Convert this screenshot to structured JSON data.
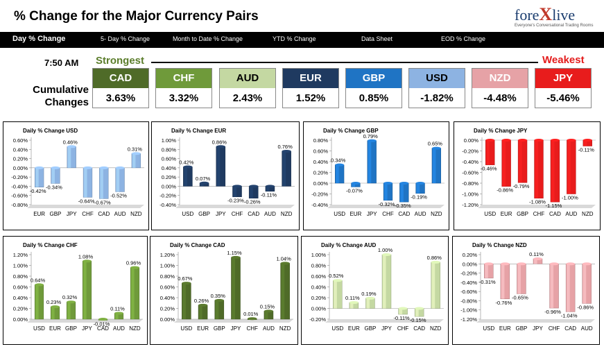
{
  "header": {
    "title": "% Change for the Major Currency Pairs",
    "logo_brand_left": "fore",
    "logo_brand_x": "X",
    "logo_brand_right": "live",
    "logo_tagline": "Everyone's Conversational Trading Rooms"
  },
  "nav": [
    {
      "label": "Day % Change",
      "active": true
    },
    {
      "label": "5- Day % Change",
      "active": false
    },
    {
      "label": "Month to Date % Change",
      "active": false
    },
    {
      "label": "YTD % Change",
      "active": false
    },
    {
      "label": "Data Sheet",
      "active": false
    },
    {
      "label": "EOD % Change",
      "active": false
    }
  ],
  "ranking": {
    "time": "7:50 AM",
    "strongest_label": "Strongest",
    "weakest_label": "Weakest",
    "cumulative_label_1": "Cumulative",
    "cumulative_label_2": "Changes",
    "currencies": [
      {
        "code": "CAD",
        "value": "3.63%",
        "color": "#4f6b28",
        "text": "#ffffff"
      },
      {
        "code": "CHF",
        "value": "3.32%",
        "color": "#6f9a3a",
        "text": "#ffffff"
      },
      {
        "code": "AUD",
        "value": "2.43%",
        "color": "#c4d8a2",
        "text": "#000000"
      },
      {
        "code": "EUR",
        "value": "1.52%",
        "color": "#1f3a60",
        "text": "#ffffff"
      },
      {
        "code": "GBP",
        "value": "0.85%",
        "color": "#1f74c4",
        "text": "#ffffff"
      },
      {
        "code": "USD",
        "value": "-1.82%",
        "color": "#8db3e2",
        "text": "#000000"
      },
      {
        "code": "NZD",
        "value": "-4.48%",
        "color": "#e6a2a6",
        "text": "#ffffff"
      },
      {
        "code": "JPY",
        "value": "-5.46%",
        "color": "#e81c1c",
        "text": "#ffffff"
      }
    ]
  },
  "chart_data": [
    {
      "type": "bar",
      "title": "Daily % Change USD",
      "categories": [
        "EUR",
        "GBP",
        "JPY",
        "CHF",
        "CAD",
        "AUD",
        "NZD"
      ],
      "values": [
        -0.42,
        -0.34,
        0.46,
        -0.64,
        -0.67,
        -0.52,
        0.31
      ],
      "labels": [
        "-0.42%",
        "-0.34%",
        "0.46%",
        "-0.64%",
        "-0.67%",
        "-0.52%",
        "0.31%"
      ],
      "ylim": [
        -0.8,
        0.6
      ],
      "yticks": [
        "0.60%",
        "0.40%",
        "0.20%",
        "0.00%",
        "-0.20%",
        "-0.40%",
        "-0.60%",
        "-0.80%"
      ],
      "color": "#8db3e2"
    },
    {
      "type": "bar",
      "title": "Daily % Change EUR",
      "categories": [
        "USD",
        "GBP",
        "JPY",
        "CHF",
        "CAD",
        "AUD",
        "NZD"
      ],
      "values": [
        0.42,
        0.07,
        0.86,
        -0.23,
        -0.26,
        -0.11,
        0.76
      ],
      "labels": [
        "0.42%",
        "0.07%",
        "0.86%",
        "-0.23%",
        "-0.26%",
        "-0.11%",
        "0.76%"
      ],
      "ylim": [
        -0.4,
        1.0
      ],
      "yticks": [
        "1.00%",
        "0.80%",
        "0.60%",
        "0.40%",
        "0.20%",
        "0.00%",
        "-0.20%",
        "-0.40%"
      ],
      "color": "#1f3a60"
    },
    {
      "type": "bar",
      "title": "Daily % Change GBP",
      "categories": [
        "USD",
        "EUR",
        "JPY",
        "CHF",
        "CAD",
        "AUD",
        "NZD"
      ],
      "values": [
        0.34,
        -0.07,
        0.79,
        -0.32,
        -0.35,
        -0.19,
        0.65
      ],
      "labels": [
        "0.34%",
        "-0.07%",
        "0.79%",
        "-0.32%",
        "-0.35%",
        "-0.19%",
        "0.65%"
      ],
      "ylim": [
        -0.4,
        0.8
      ],
      "yticks": [
        "0.80%",
        "0.60%",
        "0.40%",
        "0.20%",
        "0.00%",
        "-0.20%",
        "-0.40%"
      ],
      "color": "#1f74c4"
    },
    {
      "type": "bar",
      "title": "Daily % Change JPY",
      "categories": [
        "USD",
        "EUR",
        "GBP",
        "CHF",
        "CAD",
        "AUD",
        "NZD"
      ],
      "values": [
        -0.46,
        -0.86,
        -0.79,
        -1.08,
        -1.15,
        -1.0,
        -0.11
      ],
      "labels": [
        "-0.46%",
        "-0.86%",
        "-0.79%",
        "-1.08%",
        "-1.15%",
        "-1.00%",
        "-0.11%"
      ],
      "ylim": [
        -1.2,
        0.0
      ],
      "yticks": [
        "0.00%",
        "-0.20%",
        "-0.40%",
        "-0.60%",
        "-0.80%",
        "-1.00%",
        "-1.20%"
      ],
      "color": "#e81c1c"
    },
    {
      "type": "bar",
      "title": "Daily % Change CHF",
      "categories": [
        "USD",
        "EUR",
        "GBP",
        "JPY",
        "CAD",
        "AUD",
        "NZD"
      ],
      "values": [
        0.64,
        0.23,
        0.32,
        1.08,
        -0.01,
        0.11,
        0.96
      ],
      "labels": [
        "0.64%",
        "0.23%",
        "0.32%",
        "1.08%",
        "-0.01%",
        "0.11%",
        "0.96%"
      ],
      "ylim": [
        0.0,
        1.2
      ],
      "yticks": [
        "1.20%",
        "1.00%",
        "0.80%",
        "0.60%",
        "0.40%",
        "0.20%",
        "0.00%"
      ],
      "color": "#6f9a3a"
    },
    {
      "type": "bar",
      "title": "Daily % Change CAD",
      "categories": [
        "USD",
        "EUR",
        "GBP",
        "JPY",
        "CHF",
        "AUD",
        "NZD"
      ],
      "values": [
        0.67,
        0.26,
        0.35,
        1.15,
        0.01,
        0.15,
        1.04
      ],
      "labels": [
        "0.67%",
        "0.26%",
        "0.35%",
        "1.15%",
        "0.01%",
        "0.15%",
        "1.04%"
      ],
      "ylim": [
        0.0,
        1.2
      ],
      "yticks": [
        "1.20%",
        "1.00%",
        "0.80%",
        "0.60%",
        "0.40%",
        "0.20%",
        "0.00%"
      ],
      "color": "#4f6b28"
    },
    {
      "type": "bar",
      "title": "Daily % Change AUD",
      "categories": [
        "USD",
        "EUR",
        "GBP",
        "JPY",
        "CHF",
        "CAD",
        "NZD"
      ],
      "values": [
        0.52,
        0.11,
        0.19,
        1.0,
        -0.11,
        -0.15,
        0.86
      ],
      "labels": [
        "0.52%",
        "0.11%",
        "0.19%",
        "1.00%",
        "-0.11%",
        "-0.15%",
        "0.86%"
      ],
      "ylim": [
        -0.2,
        1.0
      ],
      "yticks": [
        "1.00%",
        "0.80%",
        "0.60%",
        "0.40%",
        "0.20%",
        "0.00%",
        "-0.20%"
      ],
      "color": "#c4d8a2"
    },
    {
      "type": "bar",
      "title": "Daily % Change NZD",
      "categories": [
        "USD",
        "EUR",
        "GBP",
        "JPY",
        "CHF",
        "CAD",
        "AUD"
      ],
      "values": [
        -0.31,
        -0.76,
        -0.65,
        0.11,
        -0.96,
        -1.04,
        -0.86
      ],
      "labels": [
        "-0.31%",
        "-0.76%",
        "-0.65%",
        "0.11%",
        "-0.96%",
        "-1.04%",
        "-0.86%"
      ],
      "ylim": [
        -1.2,
        0.2
      ],
      "yticks": [
        "0.20%",
        "0.00%",
        "-0.20%",
        "-0.40%",
        "-0.60%",
        "-0.80%",
        "-1.00%",
        "-1.20%"
      ],
      "color": "#e6a2a6"
    }
  ]
}
